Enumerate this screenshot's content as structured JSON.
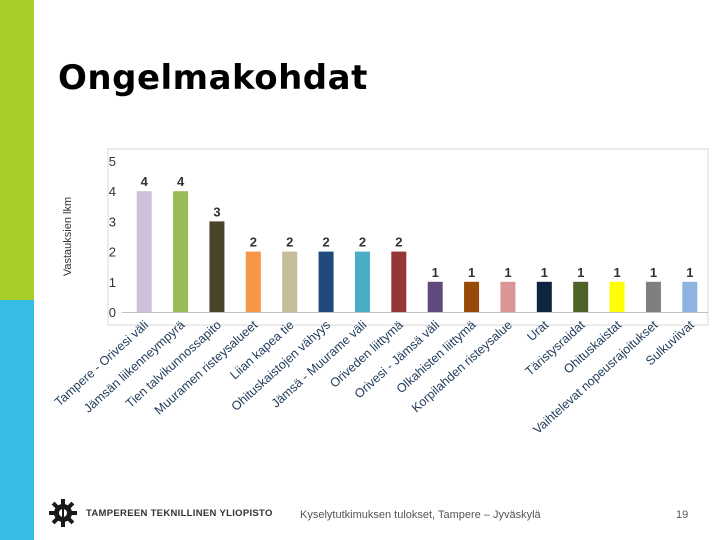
{
  "slide": {
    "title": "Ongelmakohdat",
    "footer_org": "TAMPEREEN TEKNILLINEN YLIOPISTO",
    "footer_caption": "Kyselytutkimuksen tulokset, Tampere – Jyväskylä",
    "page_number": "19",
    "colors": {
      "accent_green": "#a6cf2a",
      "accent_blue": "#35bde6"
    }
  },
  "chart_data": {
    "type": "bar",
    "title": "",
    "xlabel": "",
    "ylabel": "Vastauksien lkm",
    "ylim": [
      0,
      5
    ],
    "yticks": [
      0,
      1,
      2,
      3,
      4,
      5
    ],
    "grid": false,
    "legend": "none",
    "categories": [
      "Tampere - Orivesi väli",
      "Jämsän liikenneympyrä",
      "Tien talvikunnossapito",
      "Muuramen risteysalueet",
      "Liian kapea tie",
      "Ohituskaistojen vähyys",
      "Jämsä - Muurame väli",
      "Oriveden liittymä",
      "Orivesi - Jämsä väli",
      "Olkahisten liittymä",
      "Korpilahden risteysalue",
      "Urat",
      "Täristysraidat",
      "Ohituskaistat",
      "Vaihtelevat nopeusrajoitukset",
      "Sulkuviivat"
    ],
    "values": [
      4,
      4,
      3,
      2,
      2,
      2,
      2,
      2,
      1,
      1,
      1,
      1,
      1,
      1,
      1,
      1
    ],
    "colors": [
      "#ccc0da",
      "#9bbb59",
      "#4a452a",
      "#f79646",
      "#c4bd97",
      "#1f497d",
      "#4bacc6",
      "#953735",
      "#604a7b",
      "#984807",
      "#d99694",
      "#0f243e",
      "#4f6228",
      "#ffff00",
      "#7f7f7f",
      "#8db3e2"
    ]
  }
}
